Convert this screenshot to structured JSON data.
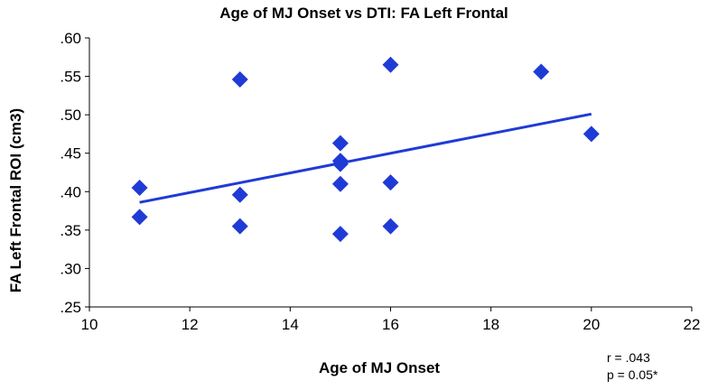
{
  "chart_data": {
    "type": "scatter",
    "title": "Age of MJ Onset vs DTI: FA Left Frontal",
    "xlabel": "Age of MJ Onset",
    "ylabel": "FA  Left Frontal ROI (cm3)",
    "xlim": [
      10,
      22
    ],
    "ylim": [
      0.25,
      0.6
    ],
    "xticks": [
      10,
      12,
      14,
      16,
      18,
      20,
      22
    ],
    "xtick_labels": [
      "10",
      "12",
      "14",
      "16",
      "18",
      "20",
      "22"
    ],
    "yticks": [
      0.6,
      0.55,
      0.5,
      0.45,
      0.4,
      0.35,
      0.3,
      0.25
    ],
    "ytick_labels": [
      ".60",
      ".55",
      ".50",
      ".45",
      ".40",
      ".35",
      ".30",
      ".25"
    ],
    "grid": false,
    "legend": "none",
    "marker": "diamond",
    "color": "#1f3bd6",
    "points": [
      {
        "x": 11,
        "y": 0.405
      },
      {
        "x": 11,
        "y": 0.367
      },
      {
        "x": 13,
        "y": 0.546
      },
      {
        "x": 13,
        "y": 0.396
      },
      {
        "x": 13,
        "y": 0.355
      },
      {
        "x": 15,
        "y": 0.463
      },
      {
        "x": 15,
        "y": 0.44
      },
      {
        "x": 15,
        "y": 0.436
      },
      {
        "x": 15,
        "y": 0.41
      },
      {
        "x": 15,
        "y": 0.345
      },
      {
        "x": 16,
        "y": 0.565
      },
      {
        "x": 16,
        "y": 0.412
      },
      {
        "x": 16,
        "y": 0.355
      },
      {
        "x": 19,
        "y": 0.556
      },
      {
        "x": 20,
        "y": 0.475
      }
    ],
    "trendline": {
      "x": [
        11,
        20
      ],
      "y": [
        0.386,
        0.501
      ]
    },
    "annotations": [
      "r = .043",
      "p = 0.05*"
    ]
  }
}
